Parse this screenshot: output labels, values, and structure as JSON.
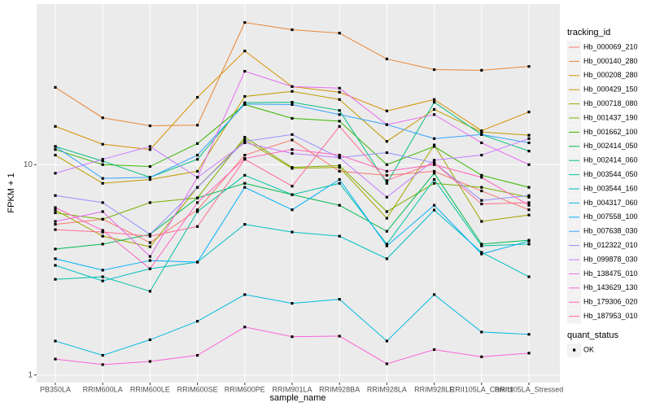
{
  "chart_data": {
    "type": "line",
    "x_label": "sample_name",
    "y_label": "FPKM + 1",
    "categories": [
      "PB350LA",
      "RRIM600LA",
      "RRIM600LE",
      "RRIM600SE",
      "RRIM600PE",
      "RRIM901LA",
      "RRIM928BA",
      "RRIM928LA",
      "RRIM928LE",
      "RRII105LA_Control",
      "RRII105LA_Stressed"
    ],
    "log_y": true,
    "ylim": [
      0.92,
      58
    ],
    "yticks": [
      1,
      10
    ],
    "grid": true,
    "legend_title": "tracking_id",
    "legend_position": "right",
    "shape_legend": {
      "title": "quant_status",
      "labels": [
        "OK"
      ],
      "color": "#000000"
    },
    "series": [
      {
        "name": "Hb_000069_210",
        "color": "#F8766D",
        "values": [
          5.2,
          5.5,
          4.26,
          6.1,
          11.1,
          13.1,
          9.3,
          8.9,
          9.3,
          7.5,
          6.1
        ]
      },
      {
        "name": "Hb_000140_280",
        "color": "#EA8331",
        "values": [
          23.3,
          16.7,
          15.3,
          15.4,
          47.4,
          43.8,
          42.2,
          31.8,
          28.3,
          28.1,
          29.3
        ]
      },
      {
        "name": "Hb_000208_280",
        "color": "#D89000",
        "values": [
          15.2,
          12.5,
          11.8,
          20.9,
          34.7,
          23.5,
          22.1,
          18.0,
          20.4,
          14.5,
          17.8
        ]
      },
      {
        "name": "Hb_000429_150",
        "color": "#C09B00",
        "values": [
          11.1,
          8.15,
          8.5,
          9.3,
          21.1,
          22.3,
          20.4,
          12.9,
          18.3,
          14.3,
          13.8
        ]
      },
      {
        "name": "Hb_000718_080",
        "color": "#A3A500",
        "values": [
          6.08,
          4.57,
          4.07,
          7.8,
          13.1,
          9.6,
          9.7,
          5.56,
          12.4,
          5.37,
          5.76
        ]
      },
      {
        "name": "Hb_001437_190",
        "color": "#7CAE00",
        "values": [
          5.9,
          5.5,
          6.6,
          6.95,
          13.5,
          9.7,
          9.9,
          5.98,
          8.15,
          7.8,
          7.0
        ]
      },
      {
        "name": "Hb_001662_100",
        "color": "#39B600",
        "values": [
          11.8,
          10.0,
          9.8,
          12.6,
          19.3,
          16.6,
          16.1,
          10.0,
          12.2,
          8.9,
          7.8
        ]
      },
      {
        "name": "Hb_002414_050",
        "color": "#00BB4E",
        "values": [
          3.97,
          4.19,
          4.66,
          6.95,
          8.15,
          7.2,
          6.41,
          4.82,
          9.1,
          4.19,
          4.37
        ]
      },
      {
        "name": "Hb_002414_060",
        "color": "#00BF7D",
        "values": [
          12.2,
          10.4,
          8.7,
          10.6,
          19.7,
          19.8,
          18.1,
          8.15,
          19.8,
          13.9,
          11.6
        ]
      },
      {
        "name": "Hb_003544_050",
        "color": "#00C1A3",
        "values": [
          2.85,
          2.93,
          2.5,
          5.98,
          8.9,
          7.2,
          8.15,
          4.19,
          8.5,
          4.11,
          4.19
        ]
      },
      {
        "name": "Hb_003544_160",
        "color": "#00BFC4",
        "values": [
          3.32,
          2.8,
          3.2,
          3.44,
          5.2,
          4.78,
          4.57,
          3.57,
          6.08,
          3.83,
          2.93
        ]
      },
      {
        "name": "Hb_004317_060",
        "color": "#00BAE0",
        "values": [
          1.45,
          1.24,
          1.47,
          1.8,
          2.41,
          2.19,
          2.29,
          1.45,
          2.41,
          1.6,
          1.56
        ]
      },
      {
        "name": "Hb_007558_100",
        "color": "#00B0F6",
        "values": [
          3.57,
          3.15,
          3.5,
          3.44,
          7.8,
          6.1,
          8.5,
          4.11,
          6.41,
          3.76,
          4.33
        ]
      },
      {
        "name": "Hb_007638_030",
        "color": "#35A2FF",
        "values": [
          12.2,
          8.6,
          8.7,
          11.1,
          19.4,
          19.3,
          17.3,
          15.5,
          13.3,
          13.9,
          12.7
        ]
      },
      {
        "name": "Hb_012322_010",
        "color": "#9590FF",
        "values": [
          7.13,
          6.6,
          4.66,
          7.8,
          12.9,
          13.9,
          10.8,
          11.4,
          10.2,
          6.76,
          7.13
        ]
      },
      {
        "name": "Hb_099878_030",
        "color": "#C77CFF",
        "values": [
          9.1,
          10.6,
          12.2,
          8.7,
          12.7,
          11.3,
          10.8,
          7.0,
          10.5,
          11.1,
          13.3
        ]
      },
      {
        "name": "Hb_138475_010",
        "color": "#E76BF3",
        "values": [
          5.37,
          5.98,
          3.66,
          8.7,
          27.8,
          23.5,
          23.1,
          15.5,
          17.3,
          12.7,
          10.0
        ]
      },
      {
        "name": "Hb_143629_130",
        "color": "#FA62DB",
        "values": [
          1.19,
          1.12,
          1.16,
          1.24,
          1.69,
          1.52,
          1.53,
          1.13,
          1.32,
          1.22,
          1.27
        ]
      },
      {
        "name": "Hb_179306_020",
        "color": "#FF62BC",
        "values": [
          6.25,
          4.87,
          3.2,
          6.6,
          10.7,
          11.8,
          11.1,
          9.3,
          10.0,
          8.7,
          6.41
        ]
      },
      {
        "name": "Hb_187953_010",
        "color": "#FF6C91",
        "values": [
          4.91,
          4.78,
          4.57,
          5.08,
          10.6,
          7.9,
          15.2,
          8.4,
          10.2,
          6.5,
          6.6
        ]
      }
    ]
  }
}
